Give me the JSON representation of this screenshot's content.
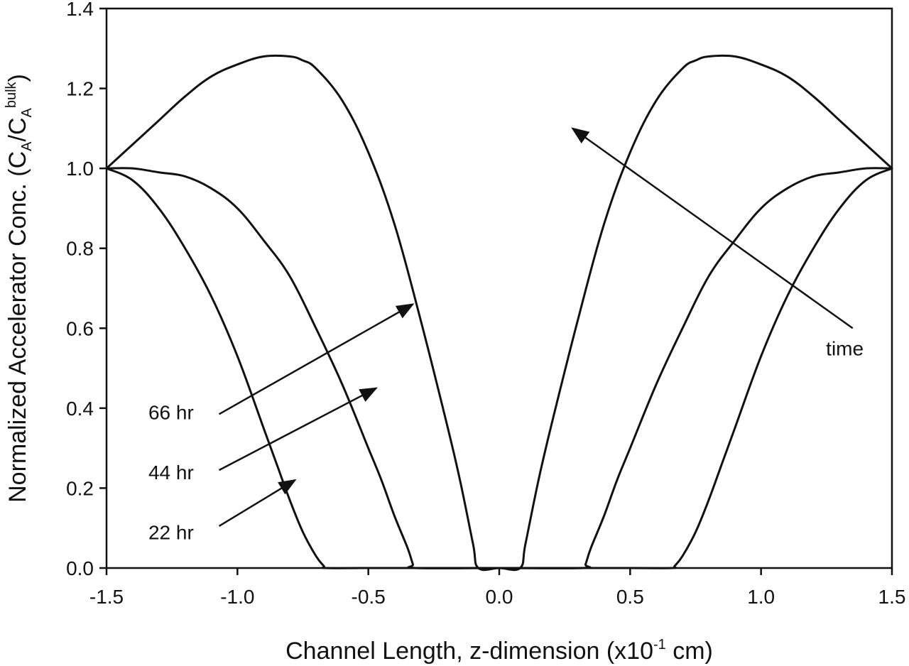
{
  "chart_data": {
    "type": "line",
    "title": "",
    "xlabel": {
      "pre": "Channel Length, z-dimension (x10",
      "sup": "-1",
      "post": " cm)"
    },
    "ylabel": {
      "pre": "Normalized Accelerator Conc. (C",
      "sub1": "A",
      "mid": "/C",
      "sub2": "A",
      "sup": "bulk",
      "post": ")"
    },
    "xlim": [
      -1.5,
      1.5
    ],
    "ylim": [
      0.0,
      1.4
    ],
    "xticks": [
      "-1.5",
      "-1.0",
      "-0.5",
      "0.0",
      "0.5",
      "1.0",
      "1.5"
    ],
    "yticks": [
      "0.0",
      "0.2",
      "0.4",
      "0.6",
      "0.8",
      "1.0",
      "1.2",
      "1.4"
    ],
    "grid": false,
    "line_color": "#111111",
    "series": [
      {
        "x": [
          -1.5,
          -1.4,
          -1.3,
          -1.2,
          -1.1,
          -1.0,
          -0.9,
          -0.85,
          -0.8,
          -0.75,
          -0.7,
          -0.67,
          -0.66,
          -0.5,
          -0.3,
          -0.1,
          0.0,
          0.1,
          0.3,
          0.5,
          0.66,
          0.67,
          0.7,
          0.75,
          0.8,
          0.85,
          0.9,
          1.0,
          1.1,
          1.2,
          1.3,
          1.4,
          1.5
        ],
        "y": [
          1.0,
          0.97,
          0.9,
          0.8,
          0.68,
          0.53,
          0.35,
          0.26,
          0.17,
          0.09,
          0.03,
          0.005,
          0.0,
          0.0,
          0.0,
          0.0,
          0.0,
          0.0,
          0.0,
          0.0,
          0.0,
          0.005,
          0.03,
          0.09,
          0.17,
          0.26,
          0.35,
          0.53,
          0.68,
          0.8,
          0.9,
          0.97,
          1.0
        ]
      },
      {
        "x": [
          -1.5,
          -1.4,
          -1.3,
          -1.2,
          -1.1,
          -1.0,
          -0.9,
          -0.8,
          -0.7,
          -0.6,
          -0.5,
          -0.45,
          -0.4,
          -0.35,
          -0.33,
          -0.32,
          0.0,
          0.32,
          0.33,
          0.35,
          0.4,
          0.45,
          0.5,
          0.6,
          0.7,
          0.8,
          0.9,
          1.0,
          1.1,
          1.2,
          1.3,
          1.4,
          1.5
        ],
        "y": [
          1.0,
          1.0,
          0.99,
          0.98,
          0.95,
          0.9,
          0.82,
          0.73,
          0.6,
          0.46,
          0.3,
          0.22,
          0.13,
          0.05,
          0.01,
          0.0,
          0.0,
          0.0,
          0.01,
          0.05,
          0.13,
          0.22,
          0.3,
          0.46,
          0.6,
          0.73,
          0.82,
          0.9,
          0.95,
          0.98,
          0.99,
          1.0,
          1.0
        ]
      },
      {
        "x": [
          -1.5,
          -1.4,
          -1.3,
          -1.2,
          -1.1,
          -1.0,
          -0.9,
          -0.8,
          -0.75,
          -0.7,
          -0.6,
          -0.5,
          -0.4,
          -0.3,
          -0.2,
          -0.15,
          -0.1,
          -0.08,
          0.0,
          0.08,
          0.1,
          0.15,
          0.2,
          0.3,
          0.4,
          0.5,
          0.6,
          0.7,
          0.75,
          0.8,
          0.9,
          1.0,
          1.1,
          1.2,
          1.3,
          1.4,
          1.5
        ],
        "y": [
          1.0,
          1.06,
          1.12,
          1.18,
          1.23,
          1.26,
          1.28,
          1.28,
          1.27,
          1.25,
          1.17,
          1.04,
          0.86,
          0.62,
          0.36,
          0.22,
          0.06,
          0.0,
          0.0,
          0.0,
          0.06,
          0.22,
          0.36,
          0.62,
          0.86,
          1.04,
          1.17,
          1.25,
          1.27,
          1.28,
          1.28,
          1.26,
          1.23,
          1.18,
          1.12,
          1.06,
          1.0
        ]
      }
    ],
    "annotations": [
      {
        "text": "66 hr",
        "x": -1.34,
        "y": 0.39,
        "arrow_from": [
          -1.07,
          0.385
        ],
        "arrow_to": [
          -0.33,
          0.66
        ]
      },
      {
        "text": "44 hr",
        "x": -1.34,
        "y": 0.24,
        "arrow_from": [
          -1.07,
          0.245
        ],
        "arrow_to": [
          -0.47,
          0.45
        ]
      },
      {
        "text": "22 hr",
        "x": -1.34,
        "y": 0.09,
        "arrow_from": [
          -1.07,
          0.105
        ],
        "arrow_to": [
          -0.78,
          0.22
        ]
      },
      {
        "text": "time",
        "x": 1.32,
        "y": 0.55,
        "arrow_from": [
          1.35,
          0.6
        ],
        "arrow_to": [
          0.28,
          1.1
        ]
      }
    ]
  }
}
